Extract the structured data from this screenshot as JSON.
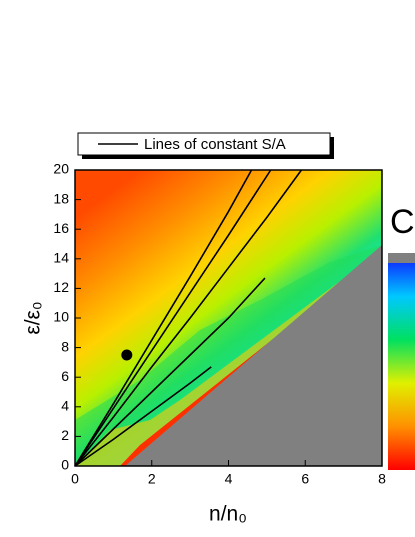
{
  "chart_data": {
    "type": "line",
    "legend_label": "Lines of constant S/A",
    "panel_label": "C",
    "x_label": "n/n₀",
    "y_label": "ε/ε₀",
    "xlim": [
      0,
      8
    ],
    "ylim": [
      0,
      20
    ],
    "xticks": [
      0,
      2,
      4,
      6,
      8
    ],
    "yticks": [
      0,
      2,
      4,
      6,
      8,
      10,
      12,
      14,
      16,
      18,
      20
    ],
    "series": [
      {
        "color": "#000000",
        "x": [
          0,
          1,
          2,
          3,
          4,
          4.6
        ],
        "y": [
          0,
          4.2,
          8.5,
          12.8,
          17.2,
          20
        ]
      },
      {
        "color": "#000000",
        "x": [
          0,
          1,
          2,
          3,
          4,
          5.1
        ],
        "y": [
          0,
          3.9,
          7.8,
          11.7,
          15.6,
          20
        ]
      },
      {
        "color": "#000000",
        "x": [
          0,
          1,
          2,
          3,
          4,
          5,
          5.9
        ],
        "y": [
          0,
          3.3,
          6.7,
          10,
          13.4,
          16.8,
          20
        ]
      },
      {
        "color": "#000000",
        "x": [
          0,
          1,
          2,
          3,
          4,
          4.95
        ],
        "y": [
          0,
          2.5,
          5,
          7.5,
          10,
          12.7
        ]
      },
      {
        "color": "#000000",
        "x": [
          0,
          1,
          2,
          3,
          3.55
        ],
        "y": [
          0,
          1.8,
          3.7,
          5.6,
          6.7
        ]
      }
    ],
    "marker": {
      "color": "#000000",
      "x": 1.35,
      "y": 7.5
    }
  }
}
